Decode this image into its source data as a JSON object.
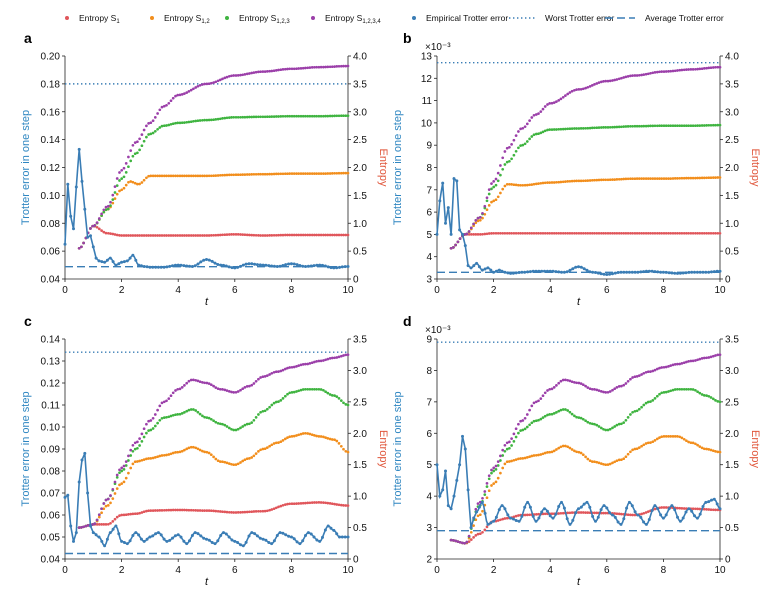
{
  "legend": [
    {
      "label": "Entropy S",
      "sub": "1",
      "kind": "dot",
      "color": "#e0565b"
    },
    {
      "label": "Entropy S",
      "sub": "1,2",
      "kind": "dot",
      "color": "#f28e1c"
    },
    {
      "label": "Entropy S",
      "sub": "1,2,3",
      "kind": "dot",
      "color": "#3fb440"
    },
    {
      "label": "Entropy S",
      "sub": "1,2,3,4",
      "kind": "dot",
      "color": "#9b3fa9"
    },
    {
      "label": "Empirical Trotter error",
      "sub": "",
      "kind": "dotline",
      "color": "#3a7db5"
    },
    {
      "label": "Worst Trotter error",
      "sub": "",
      "kind": "dotted",
      "color": "#3a7db5"
    },
    {
      "label": "Average Trotter error",
      "sub": "",
      "kind": "dashed",
      "color": "#3a7db5"
    }
  ],
  "colors": {
    "s1": "#e0565b",
    "s12": "#f28e1c",
    "s123": "#3fb440",
    "s1234": "#9b3fa9",
    "trotter": "#3a7db5",
    "entropy_axis": "#e0563b",
    "trotter_axis": "#2e86c1"
  },
  "chart_data": [
    {
      "panel": "a",
      "type": "line",
      "xlabel": "t",
      "ylabel": "Trotter error in one step",
      "y2label": "Entropy",
      "xlim": [
        0,
        10
      ],
      "xticks": [
        0,
        2,
        4,
        6,
        8,
        10
      ],
      "xtick_labels": [
        "0",
        "2",
        "4",
        "6",
        "8",
        "10"
      ],
      "ylim": [
        0.04,
        0.2
      ],
      "yticks": [
        0.04,
        0.06,
        0.08,
        0.1,
        0.12,
        0.14,
        0.16,
        0.18,
        0.2
      ],
      "ytick_labels": [
        "0.04",
        "0.06",
        "0.08",
        "0.10",
        "0.12",
        "0.14",
        "0.16",
        "0.18",
        "0.20"
      ],
      "y_exponent": "",
      "y2lim": [
        0,
        4.0
      ],
      "y2ticks": [
        0,
        0.5,
        1.0,
        1.5,
        2.0,
        2.5,
        3.0,
        3.5,
        4.0
      ],
      "y2tick_labels": [
        "0",
        "0.5",
        "1.0",
        "1.5",
        "2.0",
        "2.5",
        "3.0",
        "3.5",
        "4.0"
      ],
      "worst_error": 0.18,
      "average_error": 0.0488,
      "trotter": {
        "x": [
          0,
          0.1,
          0.2,
          0.3,
          0.4,
          0.5,
          0.6,
          0.7,
          0.8,
          0.9,
          1.0,
          1.1,
          1.2,
          1.4,
          1.6,
          1.8,
          2.0,
          2.2,
          2.4,
          2.6,
          2.8,
          3.0,
          3.5,
          4.0,
          4.5,
          5.0,
          5.5,
          6.0,
          6.5,
          7.0,
          7.5,
          8.0,
          8.5,
          9.0,
          9.5,
          10.0
        ],
        "y": [
          0.065,
          0.108,
          0.085,
          0.076,
          0.106,
          0.133,
          0.11,
          0.09,
          0.07,
          0.071,
          0.063,
          0.055,
          0.053,
          0.052,
          0.055,
          0.05,
          0.052,
          0.053,
          0.057,
          0.05,
          0.049,
          0.0485,
          0.0485,
          0.05,
          0.049,
          0.054,
          0.05,
          0.048,
          0.051,
          0.05,
          0.049,
          0.051,
          0.049,
          0.05,
          0.048,
          0.049
        ]
      },
      "s1": {
        "x": [
          0.5,
          1,
          1.5,
          2,
          3,
          4,
          5,
          6,
          7,
          8,
          9,
          10
        ],
        "y": [
          0.55,
          0.95,
          0.82,
          0.78,
          0.78,
          0.78,
          0.78,
          0.8,
          0.78,
          0.79,
          0.79,
          0.79
        ]
      },
      "s12": {
        "x": [
          0.5,
          1,
          1.5,
          2,
          2.3,
          2.6,
          3,
          4,
          5,
          6,
          7,
          8,
          9,
          10
        ],
        "y": [
          0.55,
          0.95,
          1.25,
          1.6,
          1.75,
          1.7,
          1.85,
          1.85,
          1.85,
          1.87,
          1.88,
          1.89,
          1.89,
          1.9
        ]
      },
      "s123": {
        "x": [
          0.5,
          1,
          1.5,
          2,
          2.5,
          3,
          3.5,
          4,
          5,
          6,
          7,
          8,
          9,
          10
        ],
        "y": [
          0.55,
          0.95,
          1.25,
          1.8,
          2.25,
          2.6,
          2.75,
          2.8,
          2.85,
          2.9,
          2.91,
          2.92,
          2.92,
          2.93
        ]
      },
      "s1234": {
        "x": [
          0.5,
          1,
          1.5,
          2,
          2.5,
          3,
          3.5,
          4,
          5,
          6,
          7,
          8,
          9,
          10
        ],
        "y": [
          0.55,
          0.95,
          1.3,
          1.95,
          2.45,
          2.8,
          3.1,
          3.3,
          3.5,
          3.65,
          3.72,
          3.77,
          3.8,
          3.82
        ]
      }
    },
    {
      "panel": "b",
      "type": "line",
      "xlabel": "t",
      "ylabel": "Trotter error in one step",
      "y2label": "Entropy",
      "xlim": [
        0,
        10
      ],
      "xticks": [
        0,
        2,
        4,
        6,
        8,
        10
      ],
      "xtick_labels": [
        "0",
        "2",
        "4",
        "6",
        "8",
        "10"
      ],
      "ylim": [
        3,
        13
      ],
      "yticks": [
        3,
        4,
        5,
        6,
        7,
        8,
        9,
        10,
        11,
        12,
        13
      ],
      "ytick_labels": [
        "3",
        "4",
        "5",
        "6",
        "7",
        "8",
        "9",
        "10",
        "11",
        "12",
        "13"
      ],
      "y_exponent": "×10⁻³",
      "y2lim": [
        0,
        4.0
      ],
      "y2ticks": [
        0,
        0.5,
        1.0,
        1.5,
        2.0,
        2.5,
        3.0,
        3.5,
        4.0
      ],
      "y2tick_labels": [
        "0",
        "0.5",
        "1.0",
        "1.5",
        "2.0",
        "2.5",
        "3.0",
        "3.5",
        "4.0"
      ],
      "worst_error": 12.7,
      "average_error": 3.3,
      "trotter": {
        "x": [
          0,
          0.1,
          0.2,
          0.3,
          0.4,
          0.5,
          0.6,
          0.7,
          0.8,
          0.9,
          1.0,
          1.1,
          1.2,
          1.4,
          1.6,
          1.8,
          2.0,
          2.2,
          2.4,
          2.6,
          3.0,
          3.5,
          4.0,
          4.5,
          5.0,
          5.5,
          6.0,
          6.5,
          7.0,
          7.5,
          8.0,
          8.5,
          9.0,
          9.5,
          10.0
        ],
        "y": [
          5.0,
          6.5,
          7.3,
          5.5,
          6.2,
          5.0,
          7.5,
          7.4,
          5.2,
          5.0,
          4.5,
          3.6,
          3.5,
          3.7,
          3.4,
          3.5,
          3.3,
          3.4,
          3.3,
          3.25,
          3.3,
          3.35,
          3.35,
          3.3,
          3.55,
          3.3,
          3.2,
          3.3,
          3.3,
          3.35,
          3.3,
          3.25,
          3.3,
          3.3,
          3.35
        ]
      },
      "s1": {
        "x": [
          0.5,
          1,
          1.5,
          2,
          3,
          4,
          5,
          6,
          7,
          8,
          9,
          10
        ],
        "y": [
          0.55,
          0.8,
          0.8,
          0.82,
          0.82,
          0.82,
          0.82,
          0.82,
          0.82,
          0.82,
          0.82,
          0.82
        ]
      },
      "s12": {
        "x": [
          0.5,
          1,
          1.5,
          2,
          2.5,
          3,
          4,
          5,
          6,
          7,
          8,
          9,
          10
        ],
        "y": [
          0.55,
          0.8,
          1.05,
          1.4,
          1.7,
          1.68,
          1.73,
          1.76,
          1.78,
          1.8,
          1.8,
          1.81,
          1.82
        ]
      },
      "s123": {
        "x": [
          0.5,
          1,
          1.5,
          2,
          2.5,
          3,
          3.5,
          4,
          5,
          6,
          7,
          8,
          9,
          10
        ],
        "y": [
          0.55,
          0.8,
          1.1,
          1.65,
          2.1,
          2.4,
          2.6,
          2.68,
          2.7,
          2.72,
          2.74,
          2.75,
          2.75,
          2.76
        ]
      },
      "s1234": {
        "x": [
          0.5,
          1,
          1.5,
          2,
          2.5,
          3,
          3.5,
          4,
          5,
          6,
          7,
          8,
          9,
          10
        ],
        "y": [
          0.55,
          0.8,
          1.1,
          1.75,
          2.35,
          2.7,
          2.95,
          3.15,
          3.4,
          3.55,
          3.65,
          3.72,
          3.76,
          3.8
        ]
      }
    },
    {
      "panel": "c",
      "type": "line",
      "xlabel": "t",
      "ylabel": "Trotter error in one step",
      "y2label": "Entropy",
      "xlim": [
        0,
        10
      ],
      "xticks": [
        0,
        2,
        4,
        6,
        8,
        10
      ],
      "xtick_labels": [
        "0",
        "2",
        "4",
        "6",
        "8",
        "10"
      ],
      "ylim": [
        0.04,
        0.14
      ],
      "yticks": [
        0.04,
        0.05,
        0.06,
        0.07,
        0.08,
        0.09,
        0.1,
        0.11,
        0.12,
        0.13,
        0.14
      ],
      "ytick_labels": [
        "0.04",
        "0.05",
        "0.06",
        "0.07",
        "0.08",
        "0.09",
        "0.10",
        "0.11",
        "0.12",
        "0.13",
        "0.14"
      ],
      "y_exponent": "",
      "y2lim": [
        0,
        3.5
      ],
      "y2ticks": [
        0,
        0.5,
        1.0,
        1.5,
        2.0,
        2.5,
        3.0,
        3.5
      ],
      "y2tick_labels": [
        "0",
        "0.5",
        "1.0",
        "1.5",
        "2.0",
        "2.5",
        "3.0",
        "3.5"
      ],
      "worst_error": 0.134,
      "average_error": 0.0425,
      "trotter": {
        "x": [
          0,
          0.1,
          0.2,
          0.3,
          0.4,
          0.5,
          0.6,
          0.7,
          0.8,
          0.9,
          1.0,
          1.2,
          1.4,
          1.6,
          1.8,
          2.0,
          2.2,
          2.5,
          2.8,
          3.0,
          3.3,
          3.6,
          4.0,
          4.3,
          4.6,
          5.0,
          5.3,
          5.6,
          6.0,
          6.3,
          6.6,
          7.0,
          7.3,
          7.6,
          8.0,
          8.3,
          8.6,
          9.0,
          9.3,
          9.5,
          9.7,
          10.0
        ],
        "y": [
          0.068,
          0.069,
          0.055,
          0.048,
          0.052,
          0.075,
          0.085,
          0.088,
          0.07,
          0.055,
          0.052,
          0.05,
          0.046,
          0.052,
          0.055,
          0.048,
          0.047,
          0.052,
          0.048,
          0.05,
          0.052,
          0.048,
          0.051,
          0.047,
          0.052,
          0.049,
          0.047,
          0.052,
          0.048,
          0.046,
          0.052,
          0.049,
          0.047,
          0.052,
          0.05,
          0.047,
          0.052,
          0.048,
          0.055,
          0.053,
          0.05,
          0.05
        ]
      },
      "s1": {
        "x": [
          0.5,
          1,
          1.5,
          2,
          2.5,
          3,
          4,
          5,
          6,
          7,
          8,
          9,
          10
        ],
        "y": [
          0.5,
          0.55,
          0.55,
          0.7,
          0.72,
          0.77,
          0.78,
          0.77,
          0.74,
          0.76,
          0.88,
          0.9,
          0.85
        ]
      },
      "s12": {
        "x": [
          0.5,
          1,
          1.5,
          2,
          2.5,
          3,
          3.5,
          4,
          4.5,
          5,
          5.5,
          6,
          6.5,
          7,
          7.5,
          8,
          8.5,
          9,
          9.5,
          10
        ],
        "y": [
          0.5,
          0.55,
          0.85,
          1.2,
          1.55,
          1.6,
          1.65,
          1.7,
          1.78,
          1.7,
          1.55,
          1.5,
          1.6,
          1.75,
          1.85,
          1.95,
          2.0,
          1.95,
          1.9,
          1.7
        ]
      },
      "s123": {
        "x": [
          0.5,
          1,
          1.5,
          2,
          2.5,
          3,
          3.5,
          4,
          4.5,
          5,
          5.5,
          6,
          6.5,
          7,
          7.5,
          8,
          8.5,
          9,
          9.5,
          10
        ],
        "y": [
          0.5,
          0.55,
          0.95,
          1.4,
          1.75,
          2.05,
          2.25,
          2.3,
          2.38,
          2.25,
          2.15,
          2.05,
          2.15,
          2.35,
          2.5,
          2.65,
          2.7,
          2.7,
          2.6,
          2.45
        ]
      },
      "s1234": {
        "x": [
          0.5,
          1,
          1.5,
          2,
          2.5,
          3,
          3.5,
          4,
          4.5,
          5,
          5.5,
          6,
          6.5,
          7,
          7.5,
          8,
          8.5,
          9,
          9.5,
          10
        ],
        "y": [
          0.5,
          0.55,
          0.95,
          1.45,
          1.85,
          2.2,
          2.5,
          2.7,
          2.85,
          2.8,
          2.7,
          2.65,
          2.75,
          2.9,
          2.98,
          3.05,
          3.1,
          3.15,
          3.2,
          3.25
        ]
      }
    },
    {
      "panel": "d",
      "type": "line",
      "xlabel": "t",
      "ylabel": "Trotter error in one step",
      "y2label": "Entropy",
      "xlim": [
        0,
        10
      ],
      "xticks": [
        0,
        2,
        4,
        6,
        8,
        10
      ],
      "xtick_labels": [
        "0",
        "2",
        "4",
        "6",
        "8",
        "10"
      ],
      "ylim": [
        2,
        9
      ],
      "yticks": [
        2,
        3,
        4,
        5,
        6,
        7,
        8,
        9
      ],
      "ytick_labels": [
        "2",
        "3",
        "4",
        "5",
        "6",
        "7",
        "8",
        "9"
      ],
      "y_exponent": "×10⁻³",
      "y2lim": [
        0,
        3.5
      ],
      "y2ticks": [
        0,
        0.5,
        1.0,
        1.5,
        2.0,
        2.5,
        3.0,
        3.5
      ],
      "y2tick_labels": [
        "0",
        "0.5",
        "1.0",
        "1.5",
        "2.0",
        "2.5",
        "3.0",
        "3.5"
      ],
      "worst_error": 8.9,
      "average_error": 2.9,
      "trotter": {
        "x": [
          0,
          0.1,
          0.2,
          0.3,
          0.4,
          0.5,
          0.6,
          0.7,
          0.8,
          0.9,
          1.0,
          1.1,
          1.2,
          1.3,
          1.4,
          1.6,
          1.8,
          2.0,
          2.3,
          2.6,
          2.9,
          3.2,
          3.5,
          3.8,
          4.1,
          4.4,
          4.7,
          5.0,
          5.3,
          5.6,
          5.9,
          6.2,
          6.5,
          6.8,
          7.1,
          7.4,
          7.7,
          8.0,
          8.3,
          8.6,
          8.9,
          9.2,
          9.5,
          9.8,
          10.0
        ],
        "y": [
          5.0,
          4.0,
          4.2,
          4.8,
          3.7,
          3.6,
          4.0,
          4.5,
          5.0,
          5.9,
          5.5,
          4.2,
          3.0,
          3.3,
          3.5,
          3.8,
          3.1,
          3.2,
          3.7,
          3.3,
          3.2,
          3.8,
          3.2,
          3.6,
          3.3,
          3.8,
          3.1,
          3.6,
          3.8,
          3.2,
          3.7,
          3.4,
          3.1,
          3.8,
          3.4,
          3.1,
          3.7,
          3.3,
          3.7,
          3.2,
          3.6,
          3.3,
          3.8,
          3.9,
          3.6
        ]
      },
      "s1": {
        "x": [
          0.5,
          1,
          1.5,
          2,
          2.5,
          3,
          4,
          5,
          6,
          7,
          8,
          9,
          10
        ],
        "y": [
          0.3,
          0.25,
          0.4,
          0.6,
          0.65,
          0.7,
          0.72,
          0.74,
          0.73,
          0.7,
          0.82,
          0.8,
          0.78
        ]
      },
      "s12": {
        "x": [
          0.5,
          1,
          1.5,
          2,
          2.5,
          3,
          3.5,
          4,
          4.5,
          5,
          5.5,
          6,
          6.5,
          7,
          7.5,
          8,
          8.5,
          9,
          9.5,
          10
        ],
        "y": [
          0.3,
          0.25,
          0.7,
          1.2,
          1.55,
          1.6,
          1.65,
          1.7,
          1.8,
          1.7,
          1.55,
          1.5,
          1.58,
          1.75,
          1.85,
          1.95,
          1.95,
          1.85,
          1.75,
          1.7
        ]
      },
      "s123": {
        "x": [
          0.5,
          1,
          1.5,
          2,
          2.5,
          3,
          3.5,
          4,
          4.5,
          5,
          5.5,
          6,
          6.5,
          7,
          7.5,
          8,
          8.5,
          9,
          9.5,
          10
        ],
        "y": [
          0.3,
          0.25,
          0.85,
          1.4,
          1.75,
          2.05,
          2.2,
          2.3,
          2.38,
          2.25,
          2.15,
          2.05,
          2.15,
          2.35,
          2.5,
          2.65,
          2.7,
          2.7,
          2.6,
          2.5
        ]
      },
      "s1234": {
        "x": [
          0.5,
          1,
          1.5,
          2,
          2.5,
          3,
          3.5,
          4,
          4.5,
          5,
          5.5,
          6,
          6.5,
          7,
          7.5,
          8,
          8.5,
          9,
          9.5,
          10
        ],
        "y": [
          0.3,
          0.25,
          0.9,
          1.45,
          1.85,
          2.2,
          2.5,
          2.7,
          2.85,
          2.8,
          2.7,
          2.65,
          2.75,
          2.9,
          2.98,
          3.05,
          3.1,
          3.15,
          3.2,
          3.25
        ]
      }
    }
  ]
}
